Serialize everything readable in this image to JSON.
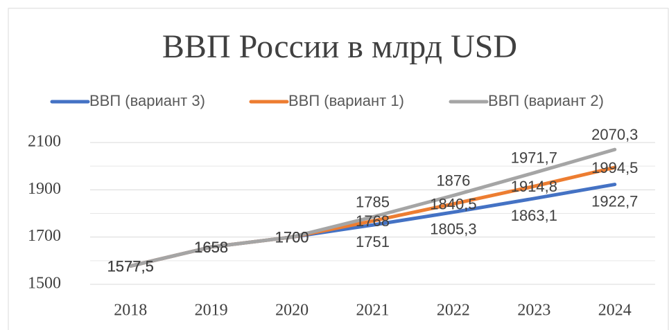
{
  "chart_data": {
    "type": "line",
    "title": "ВВП России в млрд USD",
    "categories": [
      "2018",
      "2019",
      "2020",
      "2021",
      "2022",
      "2023",
      "2024"
    ],
    "series": [
      {
        "name": "ВВП (вариант 3)",
        "color": "#4472c4",
        "values": [
          1577.5,
          1658,
          1700,
          1751,
          1805.3,
          1863.1,
          1922.7
        ],
        "value_labels": [
          "1577,5",
          "1658",
          "1700",
          "1751",
          "1805,3",
          "1863,1",
          "1922,7"
        ]
      },
      {
        "name": "ВВП (вариант 1)",
        "color": "#ed7d31",
        "values": [
          1577.5,
          1658,
          1700,
          1768,
          1840.5,
          1914.8,
          1994.5
        ],
        "value_labels": [
          "1577,5",
          "1658",
          "1700",
          "1768",
          "1840,5",
          "1914,8",
          "1994,5"
        ]
      },
      {
        "name": "ВВП (вариант 2)",
        "color": "#a5a5a5",
        "values": [
          1577.5,
          1658,
          1700,
          1785,
          1876,
          1971.7,
          2070.3
        ],
        "value_labels": [
          "1577,5",
          "1658",
          "1700",
          "1785",
          "1876",
          "1971,7",
          "2070,3"
        ]
      }
    ],
    "ylim": [
      1500,
      2100
    ],
    "yticks": [
      1500,
      1700,
      1900,
      2100
    ],
    "minor_yticks": [
      1600,
      1800,
      2000
    ],
    "grid": true,
    "legend": "top"
  }
}
